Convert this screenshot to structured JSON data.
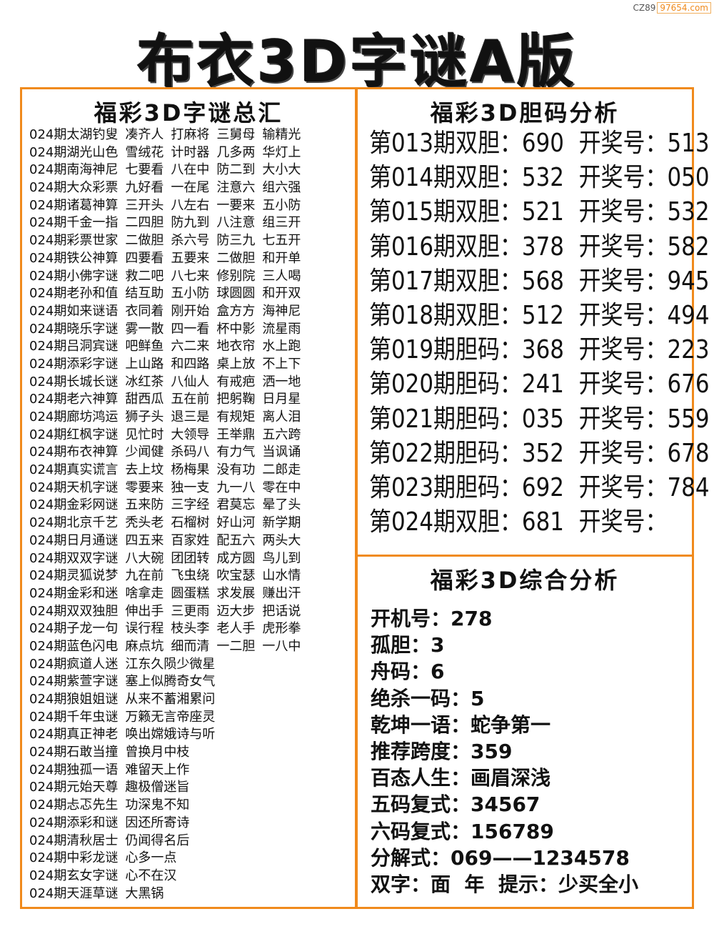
{
  "watermark": {
    "prefix": "CZ89",
    "site": "97654.com"
  },
  "title": "布衣3D字谜A版",
  "left": {
    "heading": "福彩3D字谜总汇",
    "rows": [
      [
        "024期太湖钓叟",
        "凑齐人",
        "打麻将",
        "三舅母",
        "输精光"
      ],
      [
        "024期湖光山色",
        "雪绒花",
        "计时器",
        "几多两",
        "华灯上"
      ],
      [
        "024期南海神尼",
        "七要看",
        "八在中",
        "防二到",
        "大小大"
      ],
      [
        "024期大众彩票",
        "九好看",
        "一在尾",
        "注意六",
        "组六强"
      ],
      [
        "024期诸葛神算",
        "三开头",
        "八左右",
        "一要来",
        "五小防"
      ],
      [
        "024期千金一指",
        "二四胆",
        "防九到",
        "八注意",
        "组三开"
      ],
      [
        "024期彩票世家",
        "二做胆",
        "杀六号",
        "防三九",
        "七五开"
      ],
      [
        "024期铁公神算",
        "四要看",
        "五要来",
        "二做胆",
        "和开单"
      ],
      [
        "024期小佛字谜",
        "救二吧",
        "八七来",
        "修别院",
        "三人喝"
      ],
      [
        "024期老孙和值",
        "结互助",
        "五小防",
        "球圆圆",
        "和开双"
      ],
      [
        "024期如来谜语",
        "衣同着",
        "刚开始",
        "盒方方",
        "海神尼"
      ],
      [
        "024期晓乐字谜",
        "雾一散",
        "四一看",
        "杯中影",
        "流星雨"
      ],
      [
        "024期吕洞宾谜",
        "吧鲜鱼",
        "六二来",
        "地衣帘",
        "水上跑"
      ],
      [
        "024期添彩字谜",
        "上山路",
        "和四路",
        "桌上放",
        "不上下"
      ],
      [
        "024期长城长谜",
        "冰红茶",
        "八仙人",
        "有戒疤",
        "洒一地"
      ],
      [
        "024期老六神算",
        "甜西瓜",
        "五在前",
        "把躬鞠",
        "日月星"
      ],
      [
        "024期廊坊鸿运",
        "狮子头",
        "退三是",
        "有规矩",
        "离人泪"
      ],
      [
        "024期红枫字谜",
        "见忙时",
        "大领导",
        "王举鼎",
        "五六跨"
      ],
      [
        "024期布衣神算",
        "少闻健",
        "杀码八",
        "有力气",
        "当讽诵"
      ],
      [
        "024期真实谎言",
        "去上坟",
        "杨梅果",
        "没有功",
        "二郎走"
      ],
      [
        "024期天机字谜",
        "零要来",
        "独一支",
        "九一八",
        "零在中"
      ],
      [
        "024期金彩网谜",
        "五来防",
        "三字经",
        "君莫忘",
        "晕了头"
      ],
      [
        "024期北京千艺",
        "秃头老",
        "石榴树",
        "好山河",
        "新学期"
      ],
      [
        "024期日月通谜",
        "四五来",
        "百家姓",
        "配五六",
        "两头大"
      ],
      [
        "024期双双字谜",
        "八大碗",
        "团团转",
        "成方圆",
        "鸟儿到"
      ],
      [
        "024期灵狐说梦",
        "九在前",
        "飞虫绕",
        "吹宝瑟",
        "山水情"
      ],
      [
        "024期金彩和迷",
        "啥拿走",
        "圆蛋糕",
        "求发展",
        "赚出汗"
      ],
      [
        "024期双双独胆",
        "伸出手",
        "三更雨",
        "迈大步",
        "把话说"
      ],
      [
        "024期子龙一句",
        "误行程",
        "枝头李",
        "老人手",
        "虎形拳"
      ],
      [
        "024期蓝色闪电",
        "麻点坑",
        "细而清",
        "一二胆",
        "一八中"
      ],
      [
        "024期疯道人迷",
        "江东久陨少微星"
      ],
      [
        "024期紫萱字谜",
        "塞上似腾奇女气"
      ],
      [
        "024期狼姐姐谜",
        "从来不蓄湘累问"
      ],
      [
        "024期千年虫谜",
        "万籁无言帝座灵"
      ],
      [
        "024期真正神老",
        "唤出嫦娥诗与听"
      ],
      [
        "024期石敢当撞",
        "曾换月中枝"
      ],
      [
        "024期独孤一语",
        "难留天上作"
      ],
      [
        "024期元始天尊",
        "趣极僧迷旨"
      ],
      [
        "024期忐忑先生",
        "功深鬼不知"
      ],
      [
        "024期添彩和谜",
        "因还所寄诗"
      ],
      [
        "024期清秋居士",
        "仍闻得名后"
      ],
      [
        "024期中彩龙谜",
        "心多一点"
      ],
      [
        "024期玄女字谜",
        "心不在汉"
      ],
      [
        "024期天涯草谜",
        "大黑锅"
      ]
    ]
  },
  "right_top": {
    "heading": "福彩3D胆码分析",
    "rows": [
      [
        "第013期双胆：690",
        "开奖号：513"
      ],
      [
        "第014期双胆：532",
        "开奖号：050"
      ],
      [
        "第015期双胆：521",
        "开奖号：532"
      ],
      [
        "第016期双胆：378",
        "开奖号：582"
      ],
      [
        "第017期双胆：568",
        "开奖号：945"
      ],
      [
        "第018期双胆：512",
        "开奖号：494"
      ],
      [
        "第019期胆码：368",
        "开奖号：223"
      ],
      [
        "第020期胆码：241",
        "开奖号：676"
      ],
      [
        "第021期胆码：035",
        "开奖号：559"
      ],
      [
        "第022期胆码：352",
        "开奖号：678"
      ],
      [
        "第023期胆码：692",
        "开奖号：784"
      ],
      [
        "第024期双胆：681",
        "开奖号："
      ]
    ]
  },
  "right_bottom": {
    "heading": "福彩3D综合分析",
    "lines": [
      "开机号：278",
      "孤胆：3",
      "舟码：6",
      "绝杀一码：5",
      "乾坤一语：蛇争第一",
      "推荐跨度：359",
      "百态人生：画眉深浅",
      "五码复式：34567",
      "六码复式：156789",
      "分解式：069——1234578",
      "双字：面  年  提示：少买全小"
    ]
  },
  "colors": {
    "border": "#f08a1c",
    "text": "#111111"
  }
}
